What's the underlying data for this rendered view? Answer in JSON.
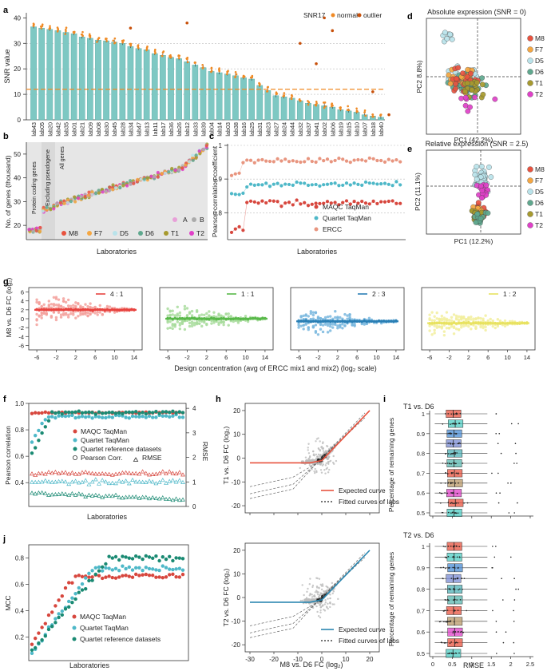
{
  "panels": {
    "a": {
      "letter": "a",
      "ylabel": "SNR value",
      "legend": {
        "title": "SNR17",
        "normal": "normal",
        "outlier": "outlier"
      },
      "colors": {
        "bar": "#7ec8c3",
        "normal": "#f08a24",
        "outlier": "#c8500a"
      },
      "yticks": [
        0,
        10,
        20,
        30,
        40
      ],
      "outliers": [
        [
          12,
          36
        ],
        [
          19,
          38
        ],
        [
          33,
          30
        ],
        [
          35,
          22
        ],
        [
          36,
          40
        ],
        [
          37,
          35
        ],
        [
          42,
          11
        ],
        [
          44,
          2
        ]
      ],
      "labs": [
        "lab43",
        "lab05",
        "lab20",
        "lab42",
        "lab35",
        "lab01",
        "lab21",
        "lab09",
        "lab08",
        "lab30",
        "lab45",
        "lab28",
        "lab34",
        "lab47",
        "lab13",
        "lab11",
        "lab17",
        "lab36",
        "lab26",
        "lab12",
        "lab33",
        "lab39",
        "lab04",
        "lab14",
        "lab03",
        "lab38",
        "lab16",
        "lab25",
        "lab31",
        "lab23",
        "lab27",
        "lab24",
        "lab44",
        "lab32",
        "lab37",
        "lab41",
        "lab02",
        "lab06",
        "lab19",
        "lab15",
        "lab10",
        "lab07",
        "lab18",
        "lab40"
      ],
      "values": [
        36.5,
        36,
        35.5,
        35,
        34.3,
        33.8,
        32.5,
        32,
        31.3,
        31,
        30.5,
        30,
        28.8,
        28,
        27.5,
        26,
        25.3,
        24.5,
        24,
        22.8,
        21.5,
        20.5,
        19,
        18.5,
        18,
        17.3,
        16.5,
        16,
        13.5,
        11.5,
        9.5,
        9,
        8.5,
        7.5,
        6.5,
        6,
        5.5,
        5,
        4,
        3.5,
        3,
        2,
        1.5,
        1
      ]
    },
    "b": {
      "letter": "b",
      "ylabel": "No. of genes (thousand)",
      "xlabel": "Laboratories",
      "yticks": [
        20,
        30,
        40,
        50
      ],
      "regions": [
        "Protein coding genes",
        "Excluding pseudogene",
        "All genes"
      ],
      "legend_ab": [
        "A",
        "B"
      ],
      "legend_samples": [
        "M8",
        "F7",
        "D5",
        "D6",
        "T1",
        "T2"
      ]
    },
    "c": {
      "letter": "c",
      "ylabel": "Pearson correlation coefficient",
      "xlabel": "Laboratories",
      "yticks": [
        "0.8",
        "0.9",
        "1"
      ],
      "legend": [
        "MAQC TaqMan",
        "Quartet TaqMan",
        "ERCC"
      ]
    },
    "d": {
      "letter": "d",
      "title": "Absolute expression (SNR = 0)",
      "xlabel": "PC1 (42.2%)",
      "ylabel": "PC2 8.8%)",
      "legend": [
        "M8",
        "F7",
        "D5",
        "D6",
        "T1",
        "T2"
      ]
    },
    "e": {
      "letter": "e",
      "title": "Relative expression (SNR = 2.5)",
      "xlabel": "PC1 (12.2%)",
      "ylabel": "PC2 (11.1%)",
      "legend": [
        "M8",
        "F7",
        "D5",
        "D6",
        "T1",
        "T2"
      ]
    },
    "g": {
      "letter": "g",
      "ylabel": "M8 vs. D6 FC (log₂)",
      "xlabel": "Design concentration (avg of ERCC mix1 and mix2) (log₂ scale)",
      "yticks": [
        -6,
        -4,
        -2,
        0,
        2,
        4,
        6
      ],
      "xticks": [
        -6,
        -2,
        2,
        6,
        10,
        14
      ],
      "subplots": [
        {
          "ratio": "4 : 1",
          "color": "#e8433f",
          "light": "#f3a19c",
          "level": 2
        },
        {
          "ratio": "1 : 1",
          "color": "#59b94a",
          "light": "#a8dc9c",
          "level": 0
        },
        {
          "ratio": "2 : 3",
          "color": "#2a7fb5",
          "light": "#79b7de",
          "level": -0.58
        },
        {
          "ratio": "1 : 2",
          "color": "#e8e260",
          "light": "#f2ee9e",
          "level": -1
        }
      ]
    },
    "f": {
      "letter": "f",
      "ylabel": "Pearson correlation",
      "y2label": "RMSE",
      "xlabel": "Laboratories",
      "yticks": [
        "0.4",
        "0.6",
        "0.8",
        "1.0"
      ],
      "y2ticks": [
        "0",
        "1",
        "2",
        "3",
        "4"
      ],
      "legend": [
        "MAQC TaqMan",
        "Quartet TaqMan",
        "Quartet reference datasets",
        "Pearson Corr.",
        "RMSE"
      ]
    },
    "h": {
      "letter": "h",
      "ylabel_top": "T1 vs. D6 FC (log₂)",
      "ylabel_bottom": "T2 vs. D6 FC (log₂)",
      "xlabel": "M8 vs. D6 FC (log₂)",
      "yticks": [
        -20,
        -10,
        0,
        10,
        20
      ],
      "xticks": [
        -30,
        -20,
        -10,
        0,
        10,
        20
      ],
      "legend_top": [
        "Expected curve",
        "Fitted curves of labs"
      ],
      "legend_bottom": [
        "Expected curve",
        "Fitted curves of labs"
      ]
    },
    "i": {
      "letter": "i",
      "title_top": "T1 vs. D6",
      "title_bottom": "T2 vs. D6",
      "ylabel": "Percentage of remaining genes",
      "xlabel": "RMSE",
      "xticks": [
        "0",
        "0.5",
        "1",
        "1.5",
        "2",
        "2.5"
      ],
      "levels": [
        "1",
        "0.9",
        "0.8",
        "0.7",
        "0.6",
        "0.5"
      ]
    },
    "j": {
      "letter": "j",
      "ylabel": "MCC",
      "xlabel": "Laboratories",
      "yticks": [
        "0.2",
        "0.4",
        "0.6",
        "0.8"
      ],
      "legend": [
        "MAQC TaqMan",
        "Quartet TaqMan",
        "Quartet reference datasets"
      ]
    }
  },
  "colors": {
    "M8": "#e8533f",
    "F7": "#f5a742",
    "D5": "#b9e3ea",
    "D6": "#5fa88e",
    "T1": "#a79a2e",
    "T2": "#e040c8",
    "maqc": "#d7473e",
    "quartet": "#4eb8c8",
    "ercc": "#e8957f",
    "ref": "#1a8a73"
  },
  "chart_data": [
    {
      "type": "bar",
      "panel": "a",
      "title": "SNR17",
      "categories": [
        "lab43",
        "lab05",
        "lab20",
        "lab42",
        "lab35",
        "lab01",
        "lab21",
        "lab09",
        "lab08",
        "lab30",
        "lab45",
        "lab28",
        "lab34",
        "lab47",
        "lab13",
        "lab11",
        "lab17",
        "lab36",
        "lab26",
        "lab12",
        "lab33",
        "lab39",
        "lab04",
        "lab14",
        "lab03",
        "lab38",
        "lab16",
        "lab25",
        "lab31",
        "lab23",
        "lab27",
        "lab24",
        "lab44",
        "lab32",
        "lab37",
        "lab41",
        "lab02",
        "lab06",
        "lab19",
        "lab15",
        "lab10",
        "lab07",
        "lab18",
        "lab40"
      ],
      "values": [
        36.5,
        36,
        35.5,
        35,
        34.3,
        33.8,
        32.5,
        32,
        31.3,
        31,
        30.5,
        30,
        28.8,
        28,
        27.5,
        26,
        25.3,
        24.5,
        24,
        22.8,
        21.5,
        20.5,
        19,
        18.5,
        18,
        17.3,
        16.5,
        16,
        13.5,
        11.5,
        9.5,
        9,
        8.5,
        7.5,
        6.5,
        6,
        5.5,
        5,
        4,
        3.5,
        3,
        2,
        1.5,
        1
      ],
      "ylabel": "SNR value",
      "ylim": [
        0,
        40
      ]
    },
    {
      "type": "line",
      "panel": "c",
      "ylabel": "Pearson correlation coefficient",
      "ylim": [
        0.72,
        1.0
      ],
      "series": [
        {
          "name": "ERCC",
          "base": 0.955
        },
        {
          "name": "Quartet TaqMan",
          "base": 0.88
        },
        {
          "name": "MAQC TaqMan",
          "base": 0.825
        }
      ]
    },
    {
      "type": "scatter",
      "panel": "g",
      "xlabel": "Design concentration (log2)",
      "ylabel": "M8 vs. D6 FC (log2)",
      "series": [
        {
          "name": "4 : 1",
          "expected": 2
        },
        {
          "name": "1 : 1",
          "expected": 0
        },
        {
          "name": "2 : 3",
          "expected": -0.58
        },
        {
          "name": "1 : 2",
          "expected": -1
        }
      ]
    }
  ]
}
